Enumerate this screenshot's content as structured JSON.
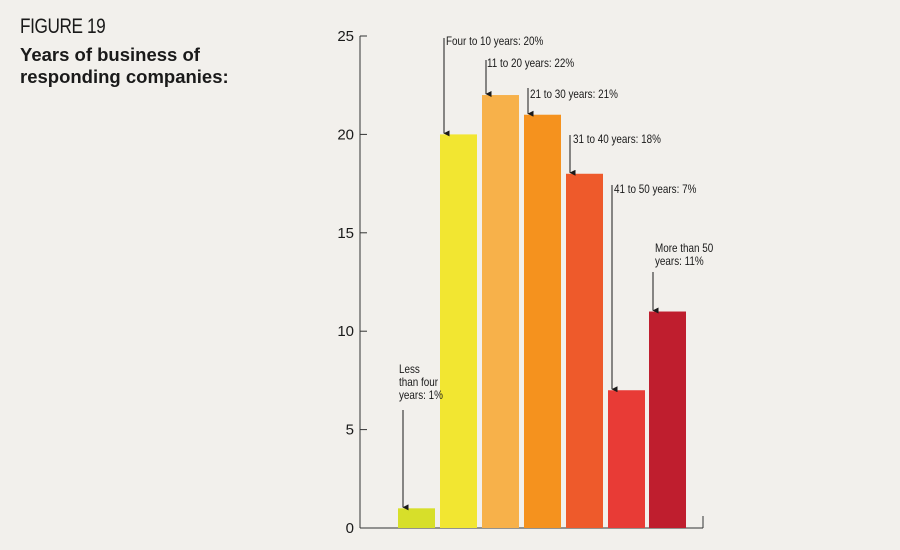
{
  "figure_label": "FIGURE 19",
  "title": "Years of business of responding companies:",
  "chart_data": {
    "type": "bar",
    "title": "Years of business of responding companies:",
    "xlabel": "",
    "ylabel": "",
    "ylim": [
      0,
      25
    ],
    "yticks": [
      0,
      5,
      10,
      15,
      20,
      25
    ],
    "grid": false,
    "legend": "none",
    "categories": [
      "Less than four years",
      "Four to 10 years",
      "11 to 20 years",
      "21 to 30 years",
      "31 to 40 years",
      "41 to 50 years",
      "More than 50 years"
    ],
    "values": [
      1,
      20,
      22,
      21,
      18,
      7,
      11
    ],
    "colors": [
      "#d7df2a",
      "#f2e631",
      "#f7b14a",
      "#f5921e",
      "#ee5a2b",
      "#e83b36",
      "#bf1e2e"
    ],
    "annotations": [
      [
        "Less",
        "than four",
        "years: 1%"
      ],
      [
        "Four to 10 years: 20%"
      ],
      [
        "11 to 20 years: 22%"
      ],
      [
        "21 to 30 years: 21%"
      ],
      [
        "31 to 40 years: 18%"
      ],
      [
        "41 to 50 years: 7%"
      ],
      [
        "More than 50",
        "years: 11%"
      ]
    ]
  }
}
